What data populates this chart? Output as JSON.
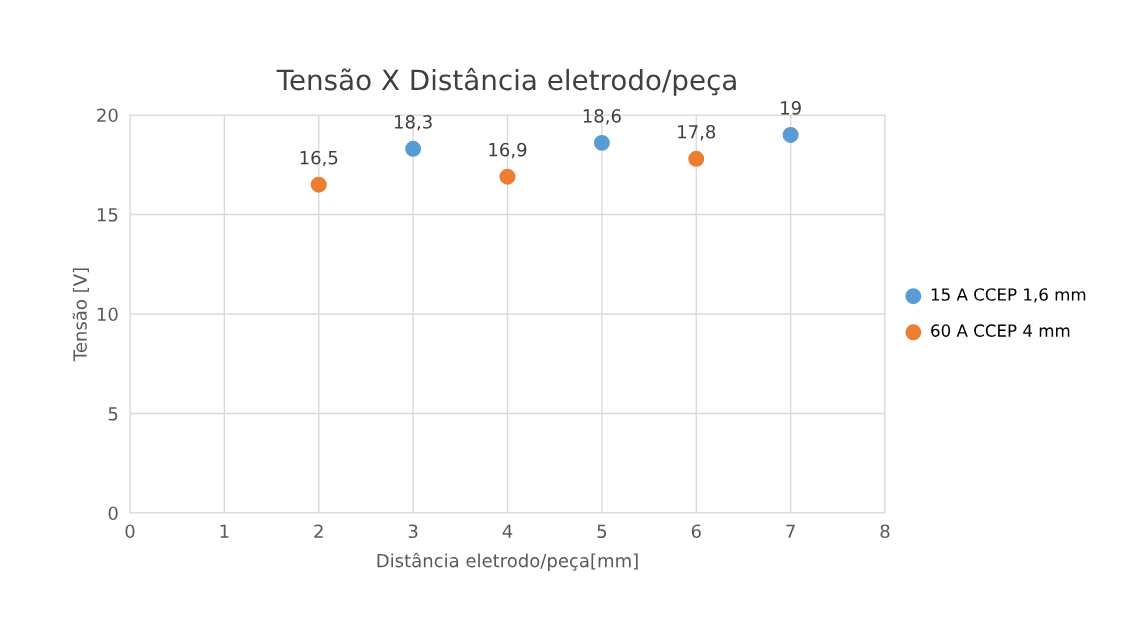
{
  "chart_data": {
    "type": "scatter",
    "title": "Tensão X Distância eletrodo/peça",
    "xlabel": "Distância eletrodo/peça[mm]",
    "ylabel": "Tensão [V]",
    "series": [
      {
        "name": "15 A CCEP 1,6 mm",
        "color": "#5b9bd5",
        "x": [
          3,
          5,
          7
        ],
        "values": [
          18.3,
          18.6,
          19
        ],
        "value_labels": [
          "18,3",
          "18,6",
          "19"
        ]
      },
      {
        "name": "60 A CCEP 4 mm",
        "color": "#ed7d31",
        "x": [
          2,
          4,
          6
        ],
        "values": [
          16.5,
          16.9,
          17.8
        ],
        "value_labels": [
          "16,5",
          "16,9",
          "17,8"
        ]
      }
    ],
    "xlim": [
      0,
      8
    ],
    "xticks": [
      0,
      1,
      2,
      3,
      4,
      5,
      6,
      7,
      8
    ],
    "ylim": [
      0,
      20
    ],
    "yticks": [
      0,
      5,
      10,
      15,
      20
    ],
    "grid": true,
    "legend": "right",
    "marker": "circle"
  }
}
